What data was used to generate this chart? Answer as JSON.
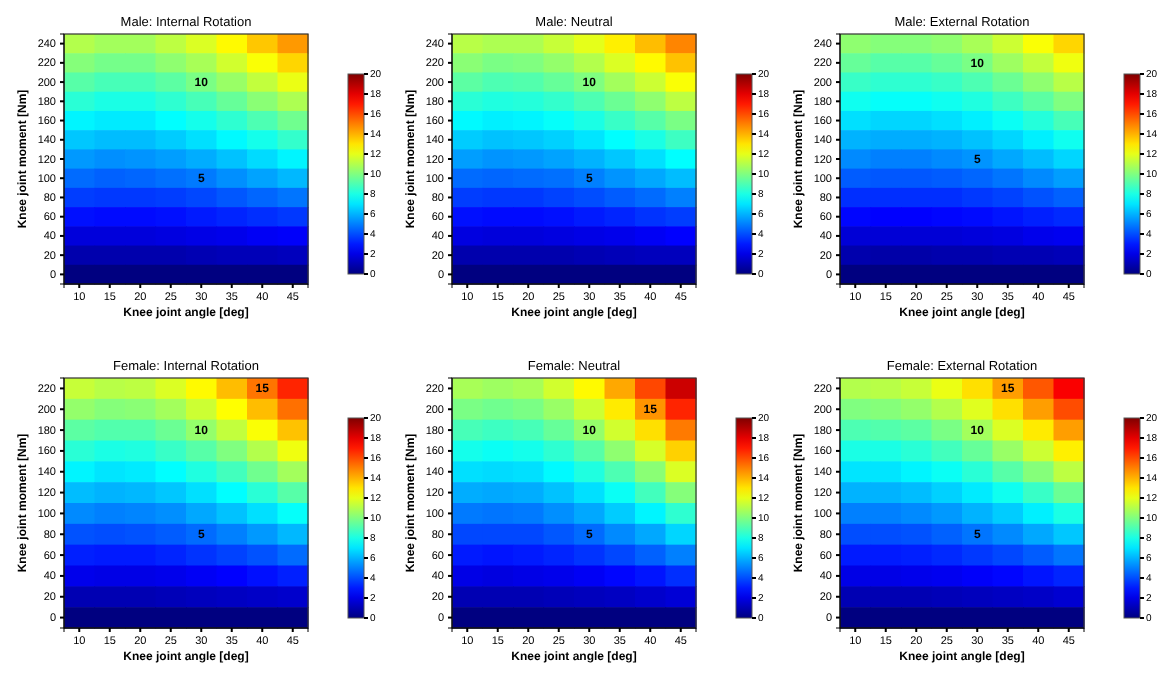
{
  "chart_data": [
    {
      "type": "heatmap",
      "title": "Male: Internal Rotation",
      "xlabel": "Knee joint angle [deg]",
      "ylabel": "Knee joint moment [Nm]",
      "categories": [
        "10",
        "15",
        "20",
        "25",
        "30",
        "35",
        "40",
        "45"
      ],
      "y_categories": [
        "240",
        "220",
        "200",
        "180",
        "160",
        "140",
        "120",
        "100",
        "80",
        "60",
        "40",
        "20",
        "0"
      ],
      "clim": [
        0,
        20
      ],
      "cticks": [
        0,
        2,
        4,
        6,
        8,
        10,
        12,
        14,
        16,
        18,
        20
      ],
      "cells": [
        [
          11.0,
          10.7,
          10.7,
          11.2,
          11.8,
          12.6,
          13.6,
          14.5
        ],
        [
          10.1,
          9.8,
          9.8,
          10.3,
          10.8,
          11.6,
          12.4,
          13.3
        ],
        [
          9.2,
          8.9,
          8.9,
          9.3,
          9.9,
          10.5,
          11.3,
          12.1
        ],
        [
          8.3,
          8.0,
          8.0,
          8.4,
          8.9,
          9.5,
          10.2,
          10.9
        ],
        [
          7.3,
          7.1,
          7.1,
          7.5,
          7.9,
          8.4,
          9.0,
          9.7
        ],
        [
          6.4,
          6.2,
          6.2,
          6.5,
          6.9,
          7.4,
          7.9,
          8.5
        ],
        [
          5.5,
          5.3,
          5.4,
          5.6,
          5.9,
          6.3,
          6.8,
          7.3
        ],
        [
          4.6,
          4.4,
          4.5,
          4.7,
          4.9,
          5.3,
          5.7,
          6.1
        ],
        [
          3.7,
          3.6,
          3.6,
          3.7,
          3.9,
          4.2,
          4.5,
          4.8
        ],
        [
          2.8,
          2.7,
          2.7,
          2.8,
          3.0,
          3.2,
          3.4,
          3.6
        ],
        [
          1.8,
          1.8,
          1.8,
          1.9,
          2.0,
          2.1,
          2.3,
          2.4
        ],
        [
          0.9,
          0.9,
          0.9,
          0.9,
          1.0,
          1.1,
          1.1,
          1.2
        ],
        [
          0,
          0,
          0,
          0,
          0,
          0,
          0,
          0
        ]
      ],
      "annotations": [
        "10",
        "5"
      ]
    },
    {
      "type": "heatmap",
      "title": "Male: Neutral",
      "xlabel": "Knee joint angle [deg]",
      "ylabel": "Knee joint moment [Nm]",
      "categories": [
        "10",
        "15",
        "20",
        "25",
        "30",
        "35",
        "40",
        "45"
      ],
      "y_categories": [
        "240",
        "220",
        "200",
        "180",
        "160",
        "140",
        "120",
        "100",
        "80",
        "60",
        "40",
        "20",
        "0"
      ],
      "clim": [
        0,
        20
      ],
      "cticks": [
        0,
        2,
        4,
        6,
        8,
        10,
        12,
        14,
        16,
        18,
        20
      ],
      "cells": [
        [
          11.1,
          10.9,
          10.9,
          11.4,
          12.0,
          12.8,
          13.8,
          14.9
        ],
        [
          10.2,
          9.9,
          10.0,
          10.4,
          11.0,
          11.8,
          12.6,
          13.7
        ],
        [
          9.3,
          9.0,
          9.1,
          9.5,
          10.0,
          10.7,
          11.5,
          12.4
        ],
        [
          8.3,
          8.1,
          8.2,
          8.5,
          9.0,
          9.6,
          10.3,
          11.2
        ],
        [
          7.4,
          7.2,
          7.3,
          7.6,
          8.0,
          8.6,
          9.2,
          9.9
        ],
        [
          6.5,
          6.3,
          6.4,
          6.6,
          7.0,
          7.5,
          8.0,
          8.7
        ],
        [
          5.6,
          5.4,
          5.5,
          5.7,
          6.0,
          6.4,
          6.9,
          7.5
        ],
        [
          4.6,
          4.5,
          4.6,
          4.7,
          5.0,
          5.4,
          5.8,
          6.2
        ],
        [
          3.7,
          3.6,
          3.6,
          3.8,
          4.0,
          4.3,
          4.6,
          5.0
        ],
        [
          2.8,
          2.7,
          2.7,
          2.8,
          3.0,
          3.2,
          3.5,
          3.7
        ],
        [
          1.9,
          1.8,
          1.8,
          1.9,
          2.0,
          2.1,
          2.3,
          2.5
        ],
        [
          0.9,
          0.9,
          0.9,
          0.9,
          1.0,
          1.1,
          1.2,
          1.2
        ],
        [
          0,
          0,
          0,
          0,
          0,
          0,
          0,
          0
        ]
      ],
      "annotations": [
        "10",
        "5"
      ]
    },
    {
      "type": "heatmap",
      "title": "Male: External Rotation",
      "xlabel": "Knee joint angle [deg]",
      "ylabel": "Knee joint moment [Nm]",
      "categories": [
        "10",
        "15",
        "20",
        "25",
        "30",
        "35",
        "40",
        "45"
      ],
      "y_categories": [
        "240",
        "220",
        "200",
        "180",
        "160",
        "140",
        "120",
        "100",
        "80",
        "60",
        "40",
        "20",
        "0"
      ],
      "clim": [
        0,
        20
      ],
      "cticks": [
        0,
        2,
        4,
        6,
        8,
        10,
        12,
        14,
        16,
        18,
        20
      ],
      "cells": [
        [
          10.3,
          10.1,
          10.1,
          10.3,
          10.8,
          11.5,
          12.4,
          13.3
        ],
        [
          9.5,
          9.2,
          9.2,
          9.5,
          9.9,
          10.6,
          11.3,
          12.2
        ],
        [
          8.6,
          8.4,
          8.4,
          8.6,
          9.0,
          9.6,
          10.3,
          11.1
        ],
        [
          7.8,
          7.6,
          7.6,
          7.8,
          8.1,
          8.7,
          9.3,
          10.0
        ],
        [
          6.9,
          6.7,
          6.7,
          6.9,
          7.2,
          7.7,
          8.2,
          8.9
        ],
        [
          6.0,
          5.9,
          5.9,
          6.0,
          6.3,
          6.7,
          7.2,
          7.8
        ],
        [
          5.2,
          5.0,
          5.0,
          5.2,
          5.4,
          5.8,
          6.2,
          6.7
        ],
        [
          4.3,
          4.2,
          4.2,
          4.3,
          4.5,
          4.8,
          5.2,
          5.6
        ],
        [
          3.4,
          3.4,
          3.4,
          3.4,
          3.6,
          3.8,
          4.1,
          4.4
        ],
        [
          2.6,
          2.5,
          2.5,
          2.6,
          2.7,
          2.9,
          3.1,
          3.3
        ],
        [
          1.7,
          1.7,
          1.7,
          1.7,
          1.8,
          1.9,
          2.1,
          2.2
        ],
        [
          0.9,
          0.8,
          0.8,
          0.9,
          0.9,
          1.0,
          1.0,
          1.1
        ],
        [
          0,
          0,
          0,
          0,
          0,
          0,
          0,
          0
        ]
      ],
      "annotations": [
        "10",
        "5"
      ]
    },
    {
      "type": "heatmap",
      "title": "Female: Internal Rotation",
      "xlabel": "Knee joint angle [deg]",
      "ylabel": "Knee joint moment [Nm]",
      "categories": [
        "10",
        "15",
        "20",
        "25",
        "30",
        "35",
        "40",
        "45"
      ],
      "y_categories": [
        "220",
        "200",
        "180",
        "160",
        "140",
        "120",
        "100",
        "80",
        "60",
        "40",
        "20",
        "0"
      ],
      "clim": [
        0,
        20
      ],
      "cticks": [
        0,
        2,
        4,
        6,
        8,
        10,
        12,
        14,
        16,
        18,
        20
      ],
      "cells": [
        [
          11.4,
          11.1,
          11.2,
          11.8,
          12.6,
          13.8,
          15.2,
          16.8
        ],
        [
          10.4,
          10.1,
          10.2,
          10.7,
          11.5,
          12.5,
          13.8,
          15.3
        ],
        [
          9.3,
          9.1,
          9.1,
          9.6,
          10.4,
          11.3,
          12.4,
          13.7
        ],
        [
          8.3,
          8.0,
          8.1,
          8.6,
          9.2,
          10.0,
          11.0,
          12.2
        ],
        [
          7.3,
          7.0,
          7.1,
          7.5,
          8.1,
          8.8,
          9.7,
          10.7
        ],
        [
          6.2,
          6.0,
          6.1,
          6.4,
          6.9,
          7.5,
          8.3,
          9.2
        ],
        [
          5.2,
          5.0,
          5.1,
          5.3,
          5.8,
          6.3,
          6.9,
          7.6
        ],
        [
          4.1,
          4.0,
          4.1,
          4.3,
          4.6,
          5.0,
          5.5,
          6.1
        ],
        [
          3.1,
          3.0,
          3.0,
          3.2,
          3.5,
          3.8,
          4.1,
          4.6
        ],
        [
          2.1,
          2.0,
          2.0,
          2.1,
          2.3,
          2.5,
          2.8,
          3.1
        ],
        [
          1.0,
          1.0,
          1.0,
          1.1,
          1.2,
          1.3,
          1.4,
          1.5
        ],
        [
          0,
          0,
          0,
          0,
          0,
          0,
          0,
          0
        ]
      ],
      "annotations": [
        "15",
        "10",
        "5"
      ]
    },
    {
      "type": "heatmap",
      "title": "Female: Neutral",
      "xlabel": "Knee joint angle [deg]",
      "ylabel": "Knee joint moment [Nm]",
      "categories": [
        "10",
        "15",
        "20",
        "25",
        "30",
        "35",
        "40",
        "45"
      ],
      "y_categories": [
        "220",
        "200",
        "180",
        "160",
        "140",
        "120",
        "100",
        "80",
        "60",
        "40",
        "20",
        "0"
      ],
      "clim": [
        0,
        20
      ],
      "cticks": [
        0,
        2,
        4,
        6,
        8,
        10,
        12,
        14,
        16,
        18,
        20
      ],
      "cells": [
        [
          10.8,
          10.6,
          10.8,
          11.6,
          12.6,
          14.2,
          16.1,
          18.5
        ],
        [
          9.9,
          9.7,
          9.9,
          10.5,
          11.5,
          12.9,
          14.6,
          16.8
        ],
        [
          8.9,
          8.7,
          8.9,
          9.5,
          10.4,
          11.6,
          13.1,
          15.1
        ],
        [
          7.9,
          7.7,
          7.9,
          8.4,
          9.2,
          10.3,
          11.7,
          13.4
        ],
        [
          6.9,
          6.8,
          6.9,
          7.4,
          8.1,
          9.0,
          10.2,
          11.8
        ],
        [
          5.9,
          5.8,
          5.9,
          6.3,
          6.9,
          7.7,
          8.8,
          10.1
        ],
        [
          4.9,
          4.8,
          4.9,
          5.3,
          5.8,
          6.5,
          7.3,
          8.4
        ],
        [
          3.9,
          3.9,
          3.9,
          4.2,
          4.6,
          5.2,
          5.8,
          6.7
        ],
        [
          3.0,
          2.9,
          3.0,
          3.2,
          3.5,
          3.9,
          4.4,
          5.0
        ],
        [
          2.0,
          1.9,
          2.0,
          2.1,
          2.3,
          2.6,
          2.9,
          3.4
        ],
        [
          1.0,
          1.0,
          1.0,
          1.1,
          1.2,
          1.3,
          1.5,
          1.7
        ],
        [
          0,
          0,
          0,
          0,
          0,
          0,
          0,
          0
        ]
      ],
      "annotations": [
        "15",
        "10",
        "5"
      ]
    },
    {
      "type": "heatmap",
      "title": "Female: External Rotation",
      "xlabel": "Knee joint angle [deg]",
      "ylabel": "Knee joint moment [Nm]",
      "categories": [
        "10",
        "15",
        "20",
        "25",
        "30",
        "35",
        "40",
        "45"
      ],
      "y_categories": [
        "220",
        "200",
        "180",
        "160",
        "140",
        "120",
        "100",
        "80",
        "60",
        "40",
        "20",
        "0"
      ],
      "clim": [
        0,
        20
      ],
      "cticks": [
        0,
        2,
        4,
        6,
        8,
        10,
        12,
        14,
        16,
        18,
        20
      ],
      "cells": [
        [
          11.0,
          11.1,
          11.4,
          12.1,
          13.1,
          14.4,
          15.8,
          17.6
        ],
        [
          10.0,
          10.1,
          10.4,
          11.0,
          11.9,
          13.1,
          14.4,
          16.0
        ],
        [
          9.0,
          9.1,
          9.3,
          9.9,
          10.7,
          11.8,
          12.9,
          14.4
        ],
        [
          8.0,
          8.0,
          8.3,
          8.8,
          9.5,
          10.5,
          11.5,
          12.8
        ],
        [
          7.0,
          7.0,
          7.3,
          7.7,
          8.3,
          9.2,
          10.1,
          11.2
        ],
        [
          6.0,
          6.0,
          6.2,
          6.6,
          7.1,
          7.8,
          8.6,
          9.6
        ],
        [
          5.0,
          5.0,
          5.2,
          5.5,
          6.0,
          6.5,
          7.2,
          8.0
        ],
        [
          4.0,
          4.0,
          4.1,
          4.4,
          4.8,
          5.2,
          5.8,
          6.4
        ],
        [
          3.0,
          3.0,
          3.1,
          3.3,
          3.6,
          3.9,
          4.3,
          4.8
        ],
        [
          2.0,
          2.0,
          2.1,
          2.2,
          2.4,
          2.6,
          2.9,
          3.2
        ],
        [
          1.0,
          1.0,
          1.0,
          1.1,
          1.2,
          1.3,
          1.4,
          1.6
        ],
        [
          0,
          0,
          0,
          0,
          0,
          0,
          0,
          0
        ]
      ],
      "annotations": [
        "15",
        "10",
        "5"
      ]
    }
  ]
}
